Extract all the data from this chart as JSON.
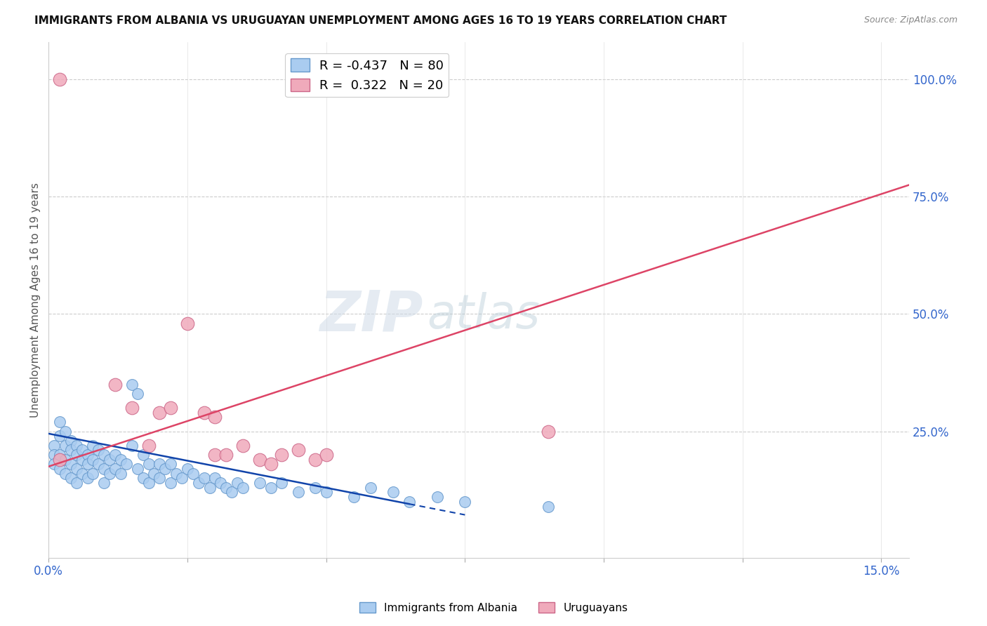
{
  "title": "IMMIGRANTS FROM ALBANIA VS URUGUAYAN UNEMPLOYMENT AMONG AGES 16 TO 19 YEARS CORRELATION CHART",
  "source": "Source: ZipAtlas.com",
  "ylabel": "Unemployment Among Ages 16 to 19 years",
  "xlim": [
    0.0,
    0.155
  ],
  "ylim": [
    -0.02,
    1.08
  ],
  "blue_r": "-0.437",
  "blue_n": "80",
  "pink_r": "0.322",
  "pink_n": "20",
  "blue_color": "#aaccf0",
  "blue_edge": "#6699cc",
  "pink_color": "#f0aabb",
  "pink_edge": "#cc6688",
  "blue_line_color": "#1144aa",
  "pink_line_color": "#dd4466",
  "watermark_zip": "ZIP",
  "watermark_atlas": "atlas",
  "blue_line_x0": 0.0,
  "blue_line_y0": 0.245,
  "blue_line_x1": 0.065,
  "blue_line_y1": 0.095,
  "pink_line_x0": 0.0,
  "pink_line_y0": 0.175,
  "pink_line_x1": 0.155,
  "pink_line_y1": 0.775,
  "blue_x": [
    0.001,
    0.001,
    0.001,
    0.002,
    0.002,
    0.002,
    0.002,
    0.003,
    0.003,
    0.003,
    0.003,
    0.004,
    0.004,
    0.004,
    0.004,
    0.005,
    0.005,
    0.005,
    0.005,
    0.006,
    0.006,
    0.006,
    0.007,
    0.007,
    0.007,
    0.008,
    0.008,
    0.008,
    0.009,
    0.009,
    0.01,
    0.01,
    0.01,
    0.011,
    0.011,
    0.012,
    0.012,
    0.013,
    0.013,
    0.014,
    0.015,
    0.015,
    0.016,
    0.016,
    0.017,
    0.017,
    0.018,
    0.018,
    0.019,
    0.02,
    0.02,
    0.021,
    0.022,
    0.022,
    0.023,
    0.024,
    0.025,
    0.026,
    0.027,
    0.028,
    0.029,
    0.03,
    0.031,
    0.032,
    0.033,
    0.034,
    0.035,
    0.038,
    0.04,
    0.042,
    0.045,
    0.048,
    0.05,
    0.055,
    0.058,
    0.062,
    0.065,
    0.07,
    0.075,
    0.09
  ],
  "blue_y": [
    0.22,
    0.2,
    0.18,
    0.27,
    0.24,
    0.2,
    0.17,
    0.25,
    0.22,
    0.19,
    0.16,
    0.23,
    0.21,
    0.18,
    0.15,
    0.22,
    0.2,
    0.17,
    0.14,
    0.21,
    0.19,
    0.16,
    0.2,
    0.18,
    0.15,
    0.22,
    0.19,
    0.16,
    0.21,
    0.18,
    0.2,
    0.17,
    0.14,
    0.19,
    0.16,
    0.2,
    0.17,
    0.19,
    0.16,
    0.18,
    0.35,
    0.22,
    0.33,
    0.17,
    0.2,
    0.15,
    0.18,
    0.14,
    0.16,
    0.18,
    0.15,
    0.17,
    0.18,
    0.14,
    0.16,
    0.15,
    0.17,
    0.16,
    0.14,
    0.15,
    0.13,
    0.15,
    0.14,
    0.13,
    0.12,
    0.14,
    0.13,
    0.14,
    0.13,
    0.14,
    0.12,
    0.13,
    0.12,
    0.11,
    0.13,
    0.12,
    0.1,
    0.11,
    0.1,
    0.09
  ],
  "pink_x": [
    0.002,
    0.012,
    0.015,
    0.018,
    0.02,
    0.022,
    0.025,
    0.028,
    0.03,
    0.03,
    0.032,
    0.035,
    0.038,
    0.04,
    0.042,
    0.045,
    0.048,
    0.05,
    0.09,
    0.002
  ],
  "pink_y": [
    1.0,
    0.35,
    0.3,
    0.22,
    0.29,
    0.3,
    0.48,
    0.29,
    0.28,
    0.2,
    0.2,
    0.22,
    0.19,
    0.18,
    0.2,
    0.21,
    0.19,
    0.2,
    0.25,
    0.19
  ]
}
